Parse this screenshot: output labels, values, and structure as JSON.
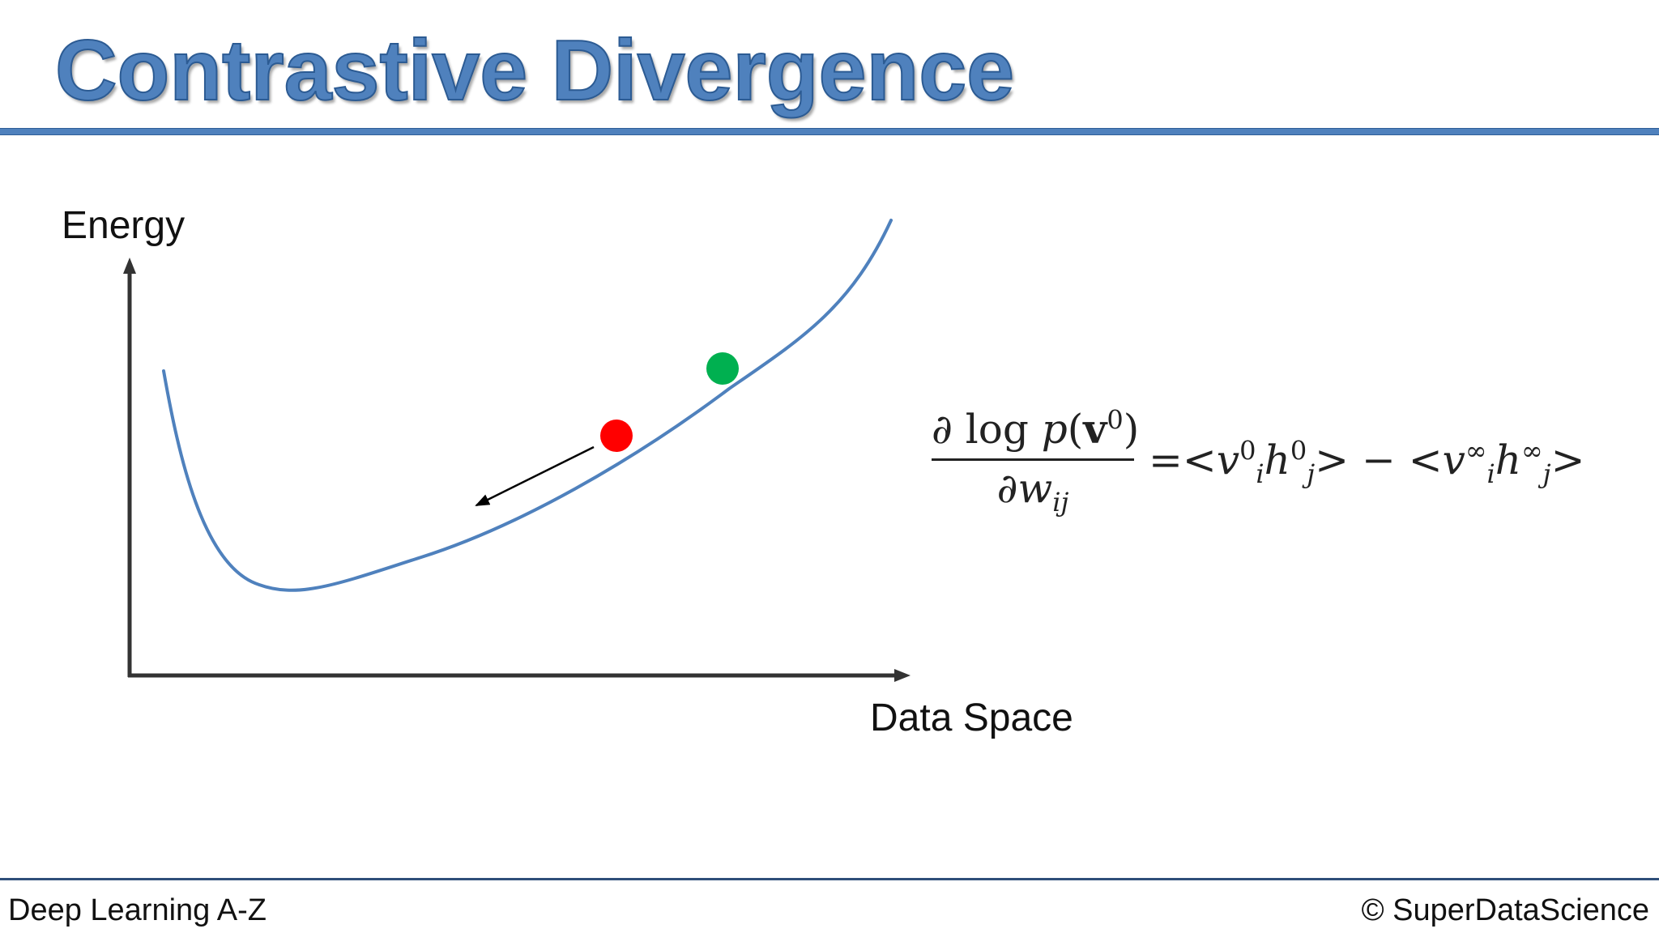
{
  "slide": {
    "title": "Contrastive Divergence",
    "footer_left": "Deep Learning A-Z",
    "footer_right": "© SuperDataScience"
  },
  "diagram": {
    "y_axis_label": "Energy",
    "x_axis_label": "Data Space",
    "curve_color": "#4f81bd",
    "axis_color": "#333333",
    "green_point_color": "#00b050",
    "red_point_color": "#ff0000",
    "arrow_color": "#000000"
  },
  "equation": {
    "numerator_partial": "∂",
    "numerator_log": " log ",
    "numerator_p": "p",
    "numerator_open": "(",
    "numerator_v": "v",
    "numerator_sup": "0",
    "numerator_close": ")",
    "denominator_partial": "∂",
    "denominator_w": "w",
    "denominator_sub": "ij",
    "equals": "=",
    "lt1": "<",
    "v1": "v",
    "v1_sub": "i",
    "v1_sup": "0",
    "h1": "h",
    "h1_sub": "j",
    "h1_sup": "0",
    "gt1": ">",
    "minus": " − ",
    "lt2": "<",
    "v2": "v",
    "v2_sub": "i",
    "v2_sup": "∞",
    "h2": "h",
    "h2_sub": "j",
    "h2_sup": "∞",
    "gt2": ">"
  }
}
